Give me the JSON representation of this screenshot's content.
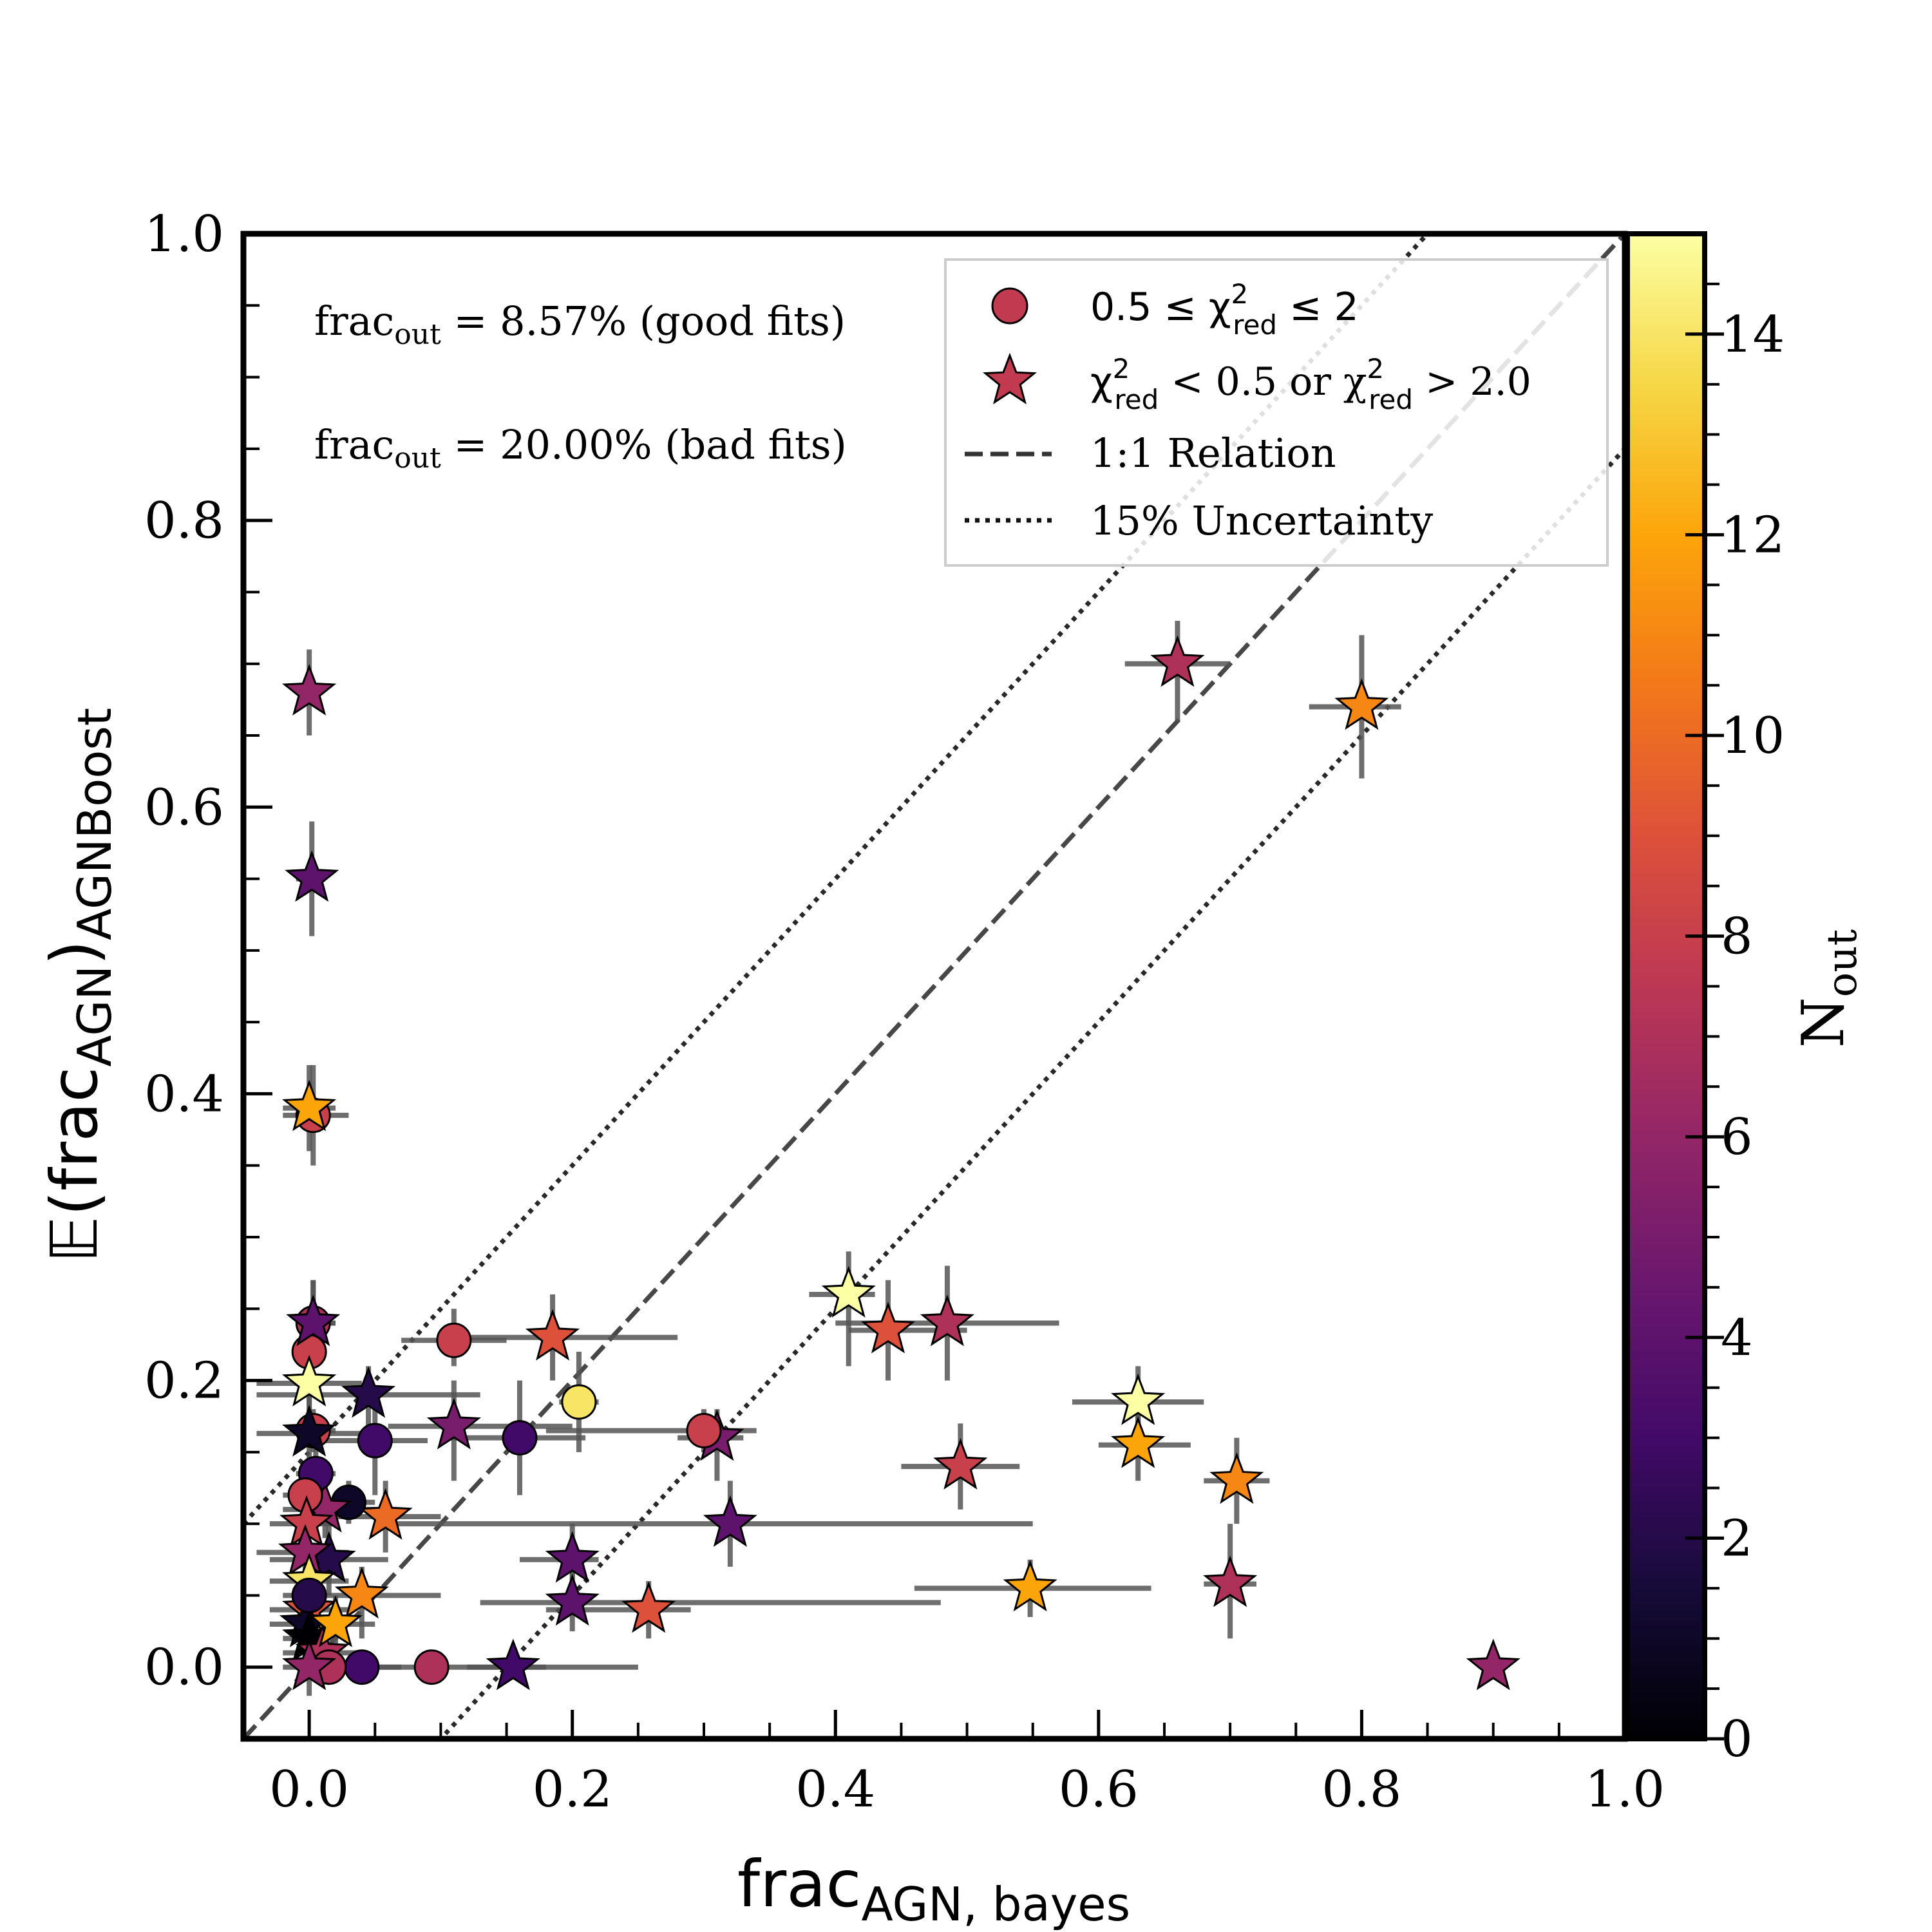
{
  "chart_data": {
    "type": "scatter",
    "xlabel_main": "frac",
    "xlabel_sub": "AGN, bayes",
    "ylabel_prefix": "𝔼(frac",
    "ylabel_inner_sub": "AGN",
    "ylabel_close": ")",
    "ylabel_sub": "AGNBoost",
    "xlim": [
      -0.05,
      1.0
    ],
    "ylim": [
      -0.05,
      1.0
    ],
    "x_ticks": [
      "0.0",
      "0.2",
      "0.4",
      "0.6",
      "0.8",
      "1.0"
    ],
    "x_tick_values": [
      0.0,
      0.2,
      0.4,
      0.6,
      0.8,
      1.0
    ],
    "y_ticks": [
      "0.0",
      "0.2",
      "0.4",
      "0.6",
      "0.8",
      "1.0"
    ],
    "y_tick_values": [
      0.0,
      0.2,
      0.4,
      0.6,
      0.8,
      1.0
    ],
    "colorbar": {
      "label_main": "N",
      "label_sub": "out",
      "range": [
        0,
        15
      ],
      "cmap": "inferno",
      "ticks": [
        "0",
        "2",
        "4",
        "6",
        "8",
        "10",
        "12",
        "14"
      ],
      "tick_values": [
        0,
        2,
        4,
        6,
        8,
        10,
        12,
        14
      ]
    },
    "annotations": [
      {
        "prefix": "frac",
        "sub": "out",
        "text": " = 8.57% (good fits)"
      },
      {
        "prefix": "frac",
        "sub": "out",
        "text": " = 20.00% (bad fits)"
      }
    ],
    "legend": {
      "position": "top-right",
      "entries": [
        {
          "type": "circle",
          "color": "#c13a50",
          "text": "0.5 ≤ χ²red ≤ 2"
        },
        {
          "type": "star",
          "color": "#c13a50",
          "text": "χ²red < 0.5 or χ²red > 2.0"
        },
        {
          "type": "dashed",
          "color": "#333333",
          "text": "1:1 Relation"
        },
        {
          "type": "dotted",
          "color": "#111111",
          "text": "15% Uncertainty"
        }
      ]
    },
    "reference_lines": {
      "identity": {
        "slope": 1,
        "offset": 0
      },
      "uncertainty": [
        0.15,
        -0.15
      ]
    },
    "points": [
      {
        "shape": "star",
        "x": 0.66,
        "y": 0.7,
        "n": 7,
        "xlo": 0.62,
        "xhi": 0.7,
        "ylo": 0.66,
        "yhi": 0.73
      },
      {
        "shape": "star",
        "x": 0.8,
        "y": 0.67,
        "n": 11,
        "xlo": 0.76,
        "xhi": 0.83,
        "ylo": 0.62,
        "yhi": 0.72
      },
      {
        "shape": "star",
        "x": 0.0,
        "y": 0.68,
        "n": 6,
        "xlo": 0.0,
        "xhi": 0.0,
        "ylo": 0.65,
        "yhi": 0.71
      },
      {
        "shape": "star",
        "x": 0.002,
        "y": 0.55,
        "n": 4,
        "xlo": -0.01,
        "xhi": 0.01,
        "ylo": 0.51,
        "yhi": 0.59
      },
      {
        "shape": "circle",
        "x": 0.003,
        "y": 0.385,
        "n": 8,
        "xlo": -0.02,
        "xhi": 0.03,
        "ylo": 0.35,
        "yhi": 0.42
      },
      {
        "shape": "star",
        "x": 0.0,
        "y": 0.39,
        "n": 12,
        "xlo": -0.02,
        "xhi": 0.02,
        "ylo": 0.36,
        "yhi": 0.42
      },
      {
        "shape": "star",
        "x": 0.41,
        "y": 0.26,
        "n": 15,
        "xlo": 0.38,
        "xhi": 0.43,
        "ylo": 0.21,
        "yhi": 0.29
      },
      {
        "shape": "star",
        "x": 0.44,
        "y": 0.235,
        "n": 9,
        "xlo": 0.41,
        "xhi": 0.5,
        "ylo": 0.2,
        "yhi": 0.27
      },
      {
        "shape": "star",
        "x": 0.485,
        "y": 0.24,
        "n": 7,
        "xlo": 0.4,
        "xhi": 0.57,
        "ylo": 0.2,
        "yhi": 0.28
      },
      {
        "shape": "star",
        "x": 0.63,
        "y": 0.185,
        "n": 15,
        "xlo": 0.58,
        "xhi": 0.68,
        "ylo": 0.16,
        "yhi": 0.21
      },
      {
        "shape": "star",
        "x": 0.63,
        "y": 0.155,
        "n": 12,
        "xlo": 0.6,
        "xhi": 0.67,
        "ylo": 0.13,
        "yhi": 0.18
      },
      {
        "shape": "star",
        "x": 0.705,
        "y": 0.13,
        "n": 11,
        "xlo": 0.68,
        "xhi": 0.73,
        "ylo": 0.1,
        "yhi": 0.16
      },
      {
        "shape": "star",
        "x": 0.495,
        "y": 0.14,
        "n": 8,
        "xlo": 0.45,
        "xhi": 0.54,
        "ylo": 0.11,
        "yhi": 0.17
      },
      {
        "shape": "star",
        "x": 0.7,
        "y": 0.058,
        "n": 7,
        "xlo": 0.68,
        "xhi": 0.72,
        "ylo": 0.02,
        "yhi": 0.1
      },
      {
        "shape": "star",
        "x": 0.548,
        "y": 0.055,
        "n": 12,
        "xlo": 0.46,
        "xhi": 0.64,
        "ylo": 0.035,
        "yhi": 0.075
      },
      {
        "shape": "star",
        "x": 0.9,
        "y": 0.0,
        "n": 6,
        "xlo": 0.9,
        "xhi": 0.9,
        "ylo": 0.0,
        "yhi": 0.0
      },
      {
        "shape": "star",
        "x": 0.32,
        "y": 0.1,
        "n": 4,
        "xlo": 0.06,
        "xhi": 0.55,
        "ylo": 0.07,
        "yhi": 0.13
      },
      {
        "shape": "star",
        "x": 0.31,
        "y": 0.16,
        "n": 5,
        "xlo": 0.28,
        "xhi": 0.33,
        "ylo": 0.13,
        "yhi": 0.18
      },
      {
        "shape": "circle",
        "x": 0.3,
        "y": 0.165,
        "n": 8,
        "xlo": 0.18,
        "xhi": 0.34,
        "ylo": 0.15,
        "yhi": 0.18
      },
      {
        "shape": "circle",
        "x": 0.205,
        "y": 0.185,
        "n": 14,
        "xlo": 0.19,
        "xhi": 0.22,
        "ylo": 0.15,
        "yhi": 0.22
      },
      {
        "shape": "star",
        "x": 0.185,
        "y": 0.23,
        "n": 9,
        "xlo": 0.1,
        "xhi": 0.28,
        "ylo": 0.2,
        "yhi": 0.26
      },
      {
        "shape": "circle",
        "x": 0.11,
        "y": 0.228,
        "n": 8,
        "xlo": 0.07,
        "xhi": 0.15,
        "ylo": 0.21,
        "yhi": 0.25
      },
      {
        "shape": "star",
        "x": 0.11,
        "y": 0.168,
        "n": 5,
        "xlo": 0.06,
        "xhi": 0.2,
        "ylo": 0.13,
        "yhi": 0.2
      },
      {
        "shape": "circle",
        "x": 0.16,
        "y": 0.16,
        "n": 3,
        "xlo": 0.1,
        "xhi": 0.21,
        "ylo": 0.12,
        "yhi": 0.2
      },
      {
        "shape": "circle",
        "x": 0.05,
        "y": 0.158,
        "n": 3,
        "xlo": 0.01,
        "xhi": 0.09,
        "ylo": 0.12,
        "yhi": 0.19
      },
      {
        "shape": "star",
        "x": 0.045,
        "y": 0.19,
        "n": 2,
        "xlo": -0.04,
        "xhi": 0.13,
        "ylo": 0.16,
        "yhi": 0.21
      },
      {
        "shape": "star",
        "x": 0.2,
        "y": 0.075,
        "n": 4,
        "xlo": 0.16,
        "xhi": 0.22,
        "ylo": 0.05,
        "yhi": 0.1
      },
      {
        "shape": "star",
        "x": 0.2,
        "y": 0.045,
        "n": 4,
        "xlo": 0.13,
        "xhi": 0.48,
        "ylo": 0.025,
        "yhi": 0.07
      },
      {
        "shape": "star",
        "x": 0.258,
        "y": 0.04,
        "n": 9,
        "xlo": 0.18,
        "xhi": 0.29,
        "ylo": 0.02,
        "yhi": 0.06
      },
      {
        "shape": "star",
        "x": 0.155,
        "y": 0.0,
        "n": 3,
        "xlo": 0.12,
        "xhi": 0.18,
        "ylo": 0.0,
        "yhi": 0.0
      },
      {
        "shape": "circle",
        "x": 0.093,
        "y": 0.0,
        "n": 7,
        "xlo": 0.05,
        "xhi": 0.25,
        "ylo": 0.0,
        "yhi": 0.0
      },
      {
        "shape": "circle",
        "x": 0.04,
        "y": 0.0,
        "n": 3,
        "xlo": 0.0,
        "xhi": 0.07,
        "ylo": 0.0,
        "yhi": 0.0
      },
      {
        "shape": "star",
        "x": 0.058,
        "y": 0.105,
        "n": 10,
        "xlo": 0.02,
        "xhi": 0.1,
        "ylo": 0.08,
        "yhi": 0.13
      },
      {
        "shape": "star",
        "x": 0.04,
        "y": 0.05,
        "n": 11,
        "xlo": -0.02,
        "xhi": 0.1,
        "ylo": 0.02,
        "yhi": 0.07
      },
      {
        "shape": "circle",
        "x": 0.03,
        "y": 0.115,
        "n": 1,
        "xlo": 0.0,
        "xhi": 0.05,
        "ylo": 0.1,
        "yhi": 0.13
      },
      {
        "shape": "star",
        "x": 0.015,
        "y": 0.075,
        "n": 2,
        "xlo": -0.03,
        "xhi": 0.06,
        "ylo": 0.05,
        "yhi": 0.1
      },
      {
        "shape": "star",
        "x": 0.012,
        "y": 0.11,
        "n": 6,
        "xlo": -0.02,
        "xhi": 0.05,
        "ylo": 0.09,
        "yhi": 0.13
      },
      {
        "shape": "circle",
        "x": 0.003,
        "y": 0.24,
        "n": 7,
        "xlo": -0.01,
        "xhi": 0.02,
        "ylo": 0.21,
        "yhi": 0.27
      },
      {
        "shape": "circle",
        "x": 0.0,
        "y": 0.22,
        "n": 8,
        "xlo": -0.01,
        "xhi": 0.01,
        "ylo": 0.2,
        "yhi": 0.24
      },
      {
        "shape": "star",
        "x": 0.003,
        "y": 0.24,
        "n": 4,
        "xlo": -0.01,
        "xhi": 0.02,
        "ylo": 0.21,
        "yhi": 0.27
      },
      {
        "shape": "star",
        "x": 0.0,
        "y": 0.198,
        "n": 15,
        "xlo": -0.04,
        "xhi": 0.04,
        "ylo": 0.17,
        "yhi": 0.22
      },
      {
        "shape": "circle",
        "x": 0.003,
        "y": 0.165,
        "n": 8,
        "xlo": -0.01,
        "xhi": 0.02,
        "ylo": 0.15,
        "yhi": 0.18
      },
      {
        "shape": "star",
        "x": 0.0,
        "y": 0.163,
        "n": 1,
        "xlo": -0.04,
        "xhi": 0.04,
        "ylo": 0.14,
        "yhi": 0.19
      },
      {
        "shape": "circle",
        "x": 0.005,
        "y": 0.135,
        "n": 3,
        "xlo": -0.01,
        "xhi": 0.02,
        "ylo": 0.11,
        "yhi": 0.16
      },
      {
        "shape": "circle",
        "x": -0.003,
        "y": 0.12,
        "n": 8,
        "xlo": -0.02,
        "xhi": 0.01,
        "ylo": 0.1,
        "yhi": 0.14
      },
      {
        "shape": "star",
        "x": -0.002,
        "y": 0.1,
        "n": 8,
        "xlo": -0.03,
        "xhi": 0.02,
        "ylo": 0.08,
        "yhi": 0.12
      },
      {
        "shape": "star",
        "x": -0.003,
        "y": 0.08,
        "n": 6,
        "xlo": -0.04,
        "xhi": 0.03,
        "ylo": 0.06,
        "yhi": 0.1
      },
      {
        "shape": "star",
        "x": 0.0,
        "y": 0.06,
        "n": 14,
        "xlo": -0.03,
        "xhi": 0.03,
        "ylo": 0.04,
        "yhi": 0.08
      },
      {
        "shape": "star",
        "x": 0.0,
        "y": 0.04,
        "n": 9,
        "xlo": -0.03,
        "xhi": 0.03,
        "ylo": 0.02,
        "yhi": 0.06
      },
      {
        "shape": "star",
        "x": -0.002,
        "y": 0.03,
        "n": 1,
        "xlo": -0.03,
        "xhi": 0.03,
        "ylo": 0.01,
        "yhi": 0.05
      },
      {
        "shape": "star",
        "x": 0.0,
        "y": 0.02,
        "n": 0,
        "xlo": -0.02,
        "xhi": 0.02,
        "ylo": 0.0,
        "yhi": 0.04
      },
      {
        "shape": "star",
        "x": 0.01,
        "y": 0.01,
        "n": 7,
        "xlo": -0.02,
        "xhi": 0.04,
        "ylo": -0.01,
        "yhi": 0.03
      },
      {
        "shape": "circle",
        "x": 0.015,
        "y": 0.0,
        "n": 7,
        "xlo": -0.01,
        "xhi": 0.04,
        "ylo": 0.0,
        "yhi": 0.0
      },
      {
        "shape": "star",
        "x": 0.0,
        "y": 0.0,
        "n": 6,
        "xlo": -0.02,
        "xhi": 0.02,
        "ylo": -0.02,
        "yhi": 0.02
      },
      {
        "shape": "star",
        "x": 0.02,
        "y": 0.03,
        "n": 12,
        "xlo": 0.0,
        "xhi": 0.05,
        "ylo": 0.01,
        "yhi": 0.05
      },
      {
        "shape": "circle",
        "x": 0.0,
        "y": 0.05,
        "n": 2,
        "xlo": -0.01,
        "xhi": 0.01,
        "ylo": 0.03,
        "yhi": 0.07
      }
    ]
  }
}
